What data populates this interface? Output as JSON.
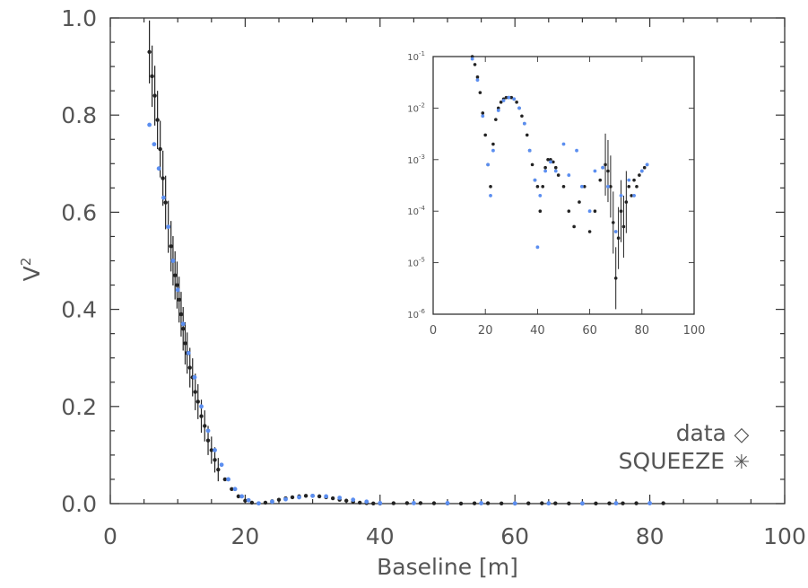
{
  "chart_data": [
    {
      "type": "scatter",
      "title": "",
      "xlabel": "Baseline [m]",
      "ylabel": "V",
      "ylabel_superscript": "2",
      "xlim": [
        0,
        100
      ],
      "ylim": [
        0.0,
        1.0
      ],
      "xticks": [
        "0",
        "20",
        "40",
        "60",
        "80",
        "100"
      ],
      "yticks": [
        "0.0",
        "0.2",
        "0.4",
        "0.6",
        "0.8",
        "1.0"
      ],
      "grid": false,
      "legend_position": "bottom-right",
      "legend": [
        {
          "label": "data",
          "symbol": "◇",
          "color": "#333333"
        },
        {
          "label": "SQUEEZE",
          "symbol": "✳",
          "color": "#5b8ef0"
        }
      ],
      "series": [
        {
          "name": "data",
          "color": "#222222",
          "x": [
            5.8,
            6.2,
            6.6,
            7.0,
            7.4,
            7.8,
            8.2,
            8.6,
            9.0,
            9.3,
            9.6,
            9.9,
            10.2,
            10.5,
            10.8,
            11.1,
            11.4,
            11.8,
            12.2,
            12.6,
            13.0,
            13.5,
            14.0,
            14.5,
            15.0,
            15.5,
            16.0,
            17.0,
            18.0,
            19.0,
            20.0,
            21.0,
            22.0,
            23.0,
            24.0,
            25.0,
            26.0,
            27.0,
            28.0,
            29.0,
            30.0,
            31.0,
            32.0,
            33.0,
            34.0,
            35.0,
            36.0,
            37.0,
            38.0,
            39.0,
            40.0,
            42.0,
            44.0,
            46.0,
            48.0,
            50.0,
            52.0,
            54.0,
            56.0,
            58.0,
            60.0,
            62.0,
            64.0,
            66.0,
            68.0,
            70.0,
            72.0,
            74.0,
            76.0,
            78.0,
            80.0,
            82.0
          ],
          "y": [
            0.93,
            0.88,
            0.84,
            0.79,
            0.73,
            0.67,
            0.62,
            0.57,
            0.53,
            0.5,
            0.47,
            0.45,
            0.42,
            0.39,
            0.36,
            0.33,
            0.31,
            0.28,
            0.26,
            0.23,
            0.21,
            0.18,
            0.16,
            0.13,
            0.11,
            0.09,
            0.07,
            0.05,
            0.03,
            0.015,
            0.006,
            0.002,
            0.0005,
            0.002,
            0.005,
            0.008,
            0.011,
            0.013,
            0.015,
            0.016,
            0.016,
            0.015,
            0.013,
            0.011,
            0.008,
            0.006,
            0.004,
            0.002,
            0.001,
            0.0004,
            0.0002,
            0.0008,
            0.001,
            0.001,
            0.0007,
            0.0003,
            0.0002,
            0.0006,
            0.0008,
            0.0004,
            0.0002,
            0.0005,
            0.0007,
            0.0006,
            0.0004,
            0.0002,
            0.0003,
            0.0005,
            0.0006,
            0.0007,
            0.0008,
            0.0008
          ]
        },
        {
          "name": "SQUEEZE",
          "color": "#5b8ef0",
          "x": [
            5.8,
            6.5,
            7.2,
            7.9,
            8.6,
            9.3,
            10.0,
            10.8,
            11.6,
            12.5,
            13.5,
            14.5,
            15.5,
            16.5,
            17.5,
            18.5,
            19.5,
            20.5,
            22.0,
            24.0,
            26.0,
            28.0,
            30.0,
            32.0,
            34.0,
            36.0,
            38.0,
            40.0,
            45.0,
            50.0,
            55.0,
            60.0,
            65.0,
            70.0,
            75.0,
            80.0
          ],
          "y": [
            0.78,
            0.74,
            0.69,
            0.63,
            0.57,
            0.5,
            0.44,
            0.37,
            0.31,
            0.26,
            0.2,
            0.15,
            0.11,
            0.08,
            0.05,
            0.03,
            0.015,
            0.007,
            0.0005,
            0.004,
            0.009,
            0.013,
            0.016,
            0.015,
            0.012,
            0.008,
            0.004,
            0.001,
            0.001,
            0.001,
            0.0008,
            0.0005,
            0.0006,
            0.0004,
            0.0007,
            0.0008
          ]
        }
      ]
    },
    {
      "type": "scatter",
      "title": "",
      "xlabel": "",
      "ylabel": "",
      "xlim": [
        0,
        100
      ],
      "ylim": [
        1e-06,
        0.1
      ],
      "yscale": "log",
      "xticks": [
        "0",
        "20",
        "40",
        "60",
        "80",
        "100"
      ],
      "yticks": [
        {
          "base": "10",
          "exp": "-6"
        },
        {
          "base": "10",
          "exp": "-5"
        },
        {
          "base": "10",
          "exp": "-4"
        },
        {
          "base": "10",
          "exp": "-3"
        },
        {
          "base": "10",
          "exp": "-2"
        },
        {
          "base": "10",
          "exp": "-1"
        }
      ],
      "grid": false,
      "series": [
        {
          "name": "data",
          "color": "#222222",
          "x": [
            15,
            16,
            17,
            18,
            19,
            20,
            21,
            22,
            23,
            24,
            25,
            26,
            27,
            28,
            29,
            30,
            31,
            32,
            33,
            34,
            35,
            36,
            37,
            38,
            39,
            40,
            41,
            42,
            43,
            44,
            45,
            46,
            47,
            48,
            50,
            52,
            54,
            56,
            58,
            60,
            62,
            64,
            65,
            66,
            67,
            68,
            69,
            70,
            71,
            72,
            73,
            74,
            75,
            76,
            77,
            78,
            79,
            80,
            81,
            82
          ],
          "y": [
            0.1,
            0.07,
            0.04,
            0.02,
            0.008,
            0.003,
            0.0008,
            0.0003,
            0.002,
            0.006,
            0.01,
            0.013,
            0.015,
            0.016,
            0.016,
            0.016,
            0.015,
            0.013,
            0.01,
            0.007,
            0.005,
            0.003,
            0.0015,
            0.0008,
            0.0004,
            0.0003,
            0.0001,
            0.0003,
            0.0007,
            0.001,
            0.001,
            0.0009,
            0.0007,
            0.0005,
            0.0003,
            0.0001,
            5e-05,
            0.00015,
            0.0003,
            4e-05,
            0.0001,
            0.0004,
            0.0007,
            0.0008,
            0.0006,
            0.0003,
            6e-05,
            5e-06,
            3e-05,
            0.0001,
            5e-05,
            0.00015,
            0.0003,
            0.0002,
            0.0004,
            0.0003,
            0.0005,
            0.0006,
            0.0007,
            0.0008
          ]
        },
        {
          "name": "SQUEEZE",
          "color": "#5b8ef0",
          "x": [
            15,
            17,
            19,
            21,
            22,
            23,
            25,
            27,
            29,
            31,
            33,
            35,
            37,
            39,
            40,
            41,
            43,
            45,
            47,
            50,
            52,
            55,
            57,
            60,
            62,
            65,
            67,
            70,
            72,
            75,
            77,
            80,
            82
          ],
          "y": [
            0.09,
            0.035,
            0.007,
            0.0008,
            0.0002,
            0.0015,
            0.009,
            0.014,
            0.016,
            0.015,
            0.01,
            0.005,
            0.0015,
            0.0004,
            2e-05,
            0.0002,
            0.0006,
            0.0009,
            0.0006,
            0.002,
            0.0005,
            0.0015,
            0.0003,
            0.0001,
            0.0006,
            0.0007,
            0.0003,
            4e-05,
            0.0002,
            0.0004,
            0.0002,
            0.0006,
            0.0008
          ]
        }
      ]
    }
  ]
}
